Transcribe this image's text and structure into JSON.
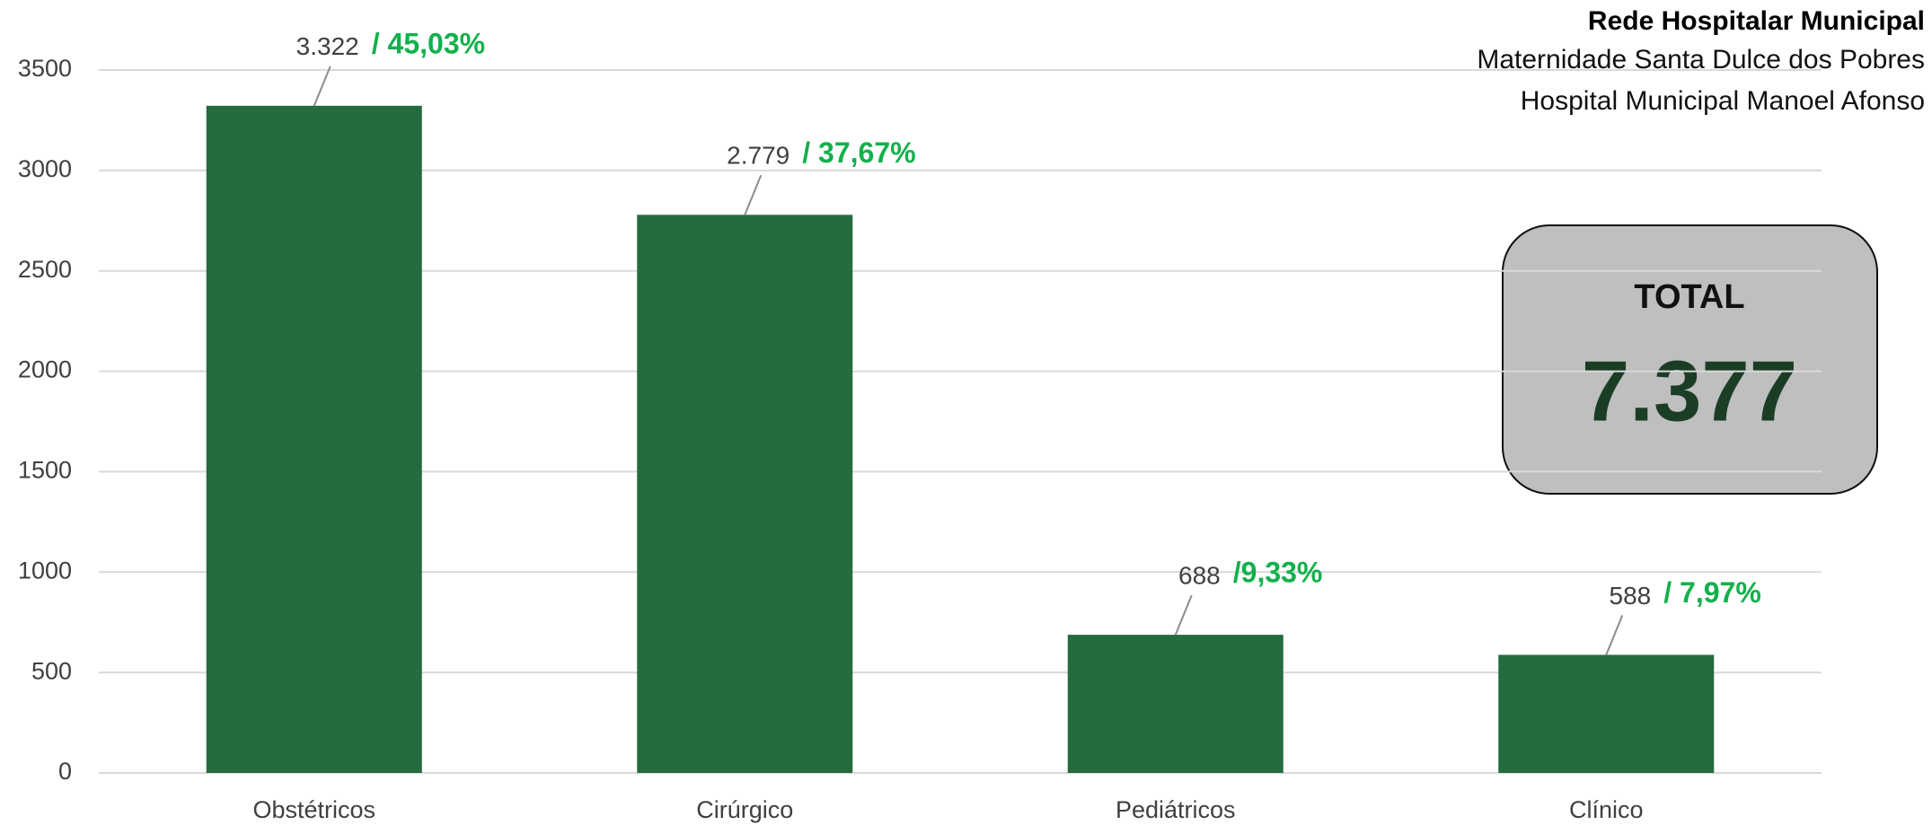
{
  "chart_data": {
    "type": "bar",
    "title": "Rede Hospitalar Municipal",
    "subtitle": [
      "Maternidade Santa Dulce dos Pobres",
      "Hospital Municipal Manoel Afonso"
    ],
    "categories": [
      "Obstétricos",
      "Cirúrgico",
      "Pediátricos",
      "Clínico"
    ],
    "values": [
      3322,
      2779,
      688,
      588
    ],
    "value_labels": [
      "3.322",
      "2.779",
      "688",
      "588"
    ],
    "percent_labels": [
      "/ 45,03%",
      "/ 37,67%",
      "/9,33%",
      "/ 7,97%"
    ],
    "color": "#246b40",
    "percent_color": "#12b04c",
    "ylim": [
      0,
      3500
    ],
    "yticks": [
      0,
      500,
      1000,
      1500,
      2000,
      2500,
      3000,
      3500
    ],
    "grid": true,
    "total_title": "TOTAL",
    "total_text": "7.377"
  }
}
